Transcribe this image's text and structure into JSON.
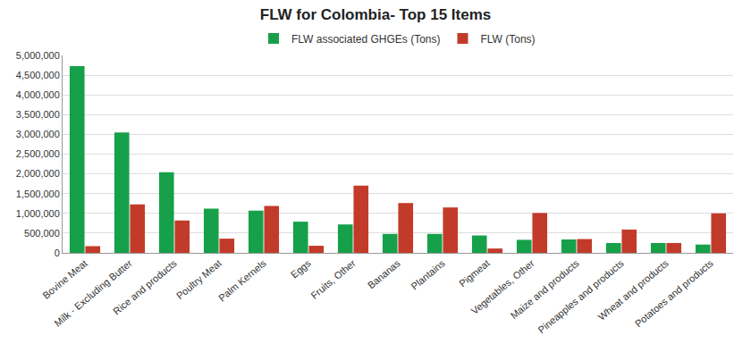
{
  "chart_data": {
    "type": "bar",
    "title": "FLW for Colombia- Top 15 Items",
    "categories": [
      "Bovine Meat",
      "Milk - Excluding Butter",
      "Rice and products",
      "Poultry Meat",
      "Palm Kernels",
      "Eggs",
      "Fruits, Other",
      "Bananas",
      "Plantains",
      "Pigmeat",
      "Vegetables, Other",
      "Maize and products",
      "Pineapples and products",
      "Wheat and products",
      "Potatoes and products"
    ],
    "series": [
      {
        "name": "FLW associated GHGEs (Tons)",
        "color": "#17a04a",
        "values": [
          4730000,
          3050000,
          2040000,
          1120000,
          1070000,
          790000,
          720000,
          480000,
          480000,
          440000,
          330000,
          340000,
          250000,
          250000,
          210000
        ]
      },
      {
        "name": "FLW (Tons)",
        "color": "#c23b2a",
        "values": [
          170000,
          1230000,
          820000,
          360000,
          1190000,
          180000,
          1700000,
          1260000,
          1150000,
          110000,
          1010000,
          350000,
          590000,
          250000,
          1000000
        ]
      }
    ],
    "ylim": [
      0,
      5000000
    ],
    "yticks": [
      0,
      {
        "value": 500000,
        "label": "500,000"
      },
      {
        "value": 1000000,
        "label": "1,000,000"
      },
      {
        "value": 1500000,
        "label": "1,500,000"
      },
      {
        "value": 2000000,
        "label": "2,000,000"
      },
      {
        "value": 2500000,
        "label": "2,500,000"
      },
      {
        "value": 3000000,
        "label": "3,000,000"
      },
      {
        "value": 3500000,
        "label": "3,500,000"
      },
      {
        "value": 4000000,
        "label": "4,000,000"
      },
      {
        "value": 4500000,
        "label": "4,500,000"
      },
      {
        "value": 5000000,
        "label": "5,000,000"
      }
    ],
    "grid": true,
    "legend": "top"
  }
}
